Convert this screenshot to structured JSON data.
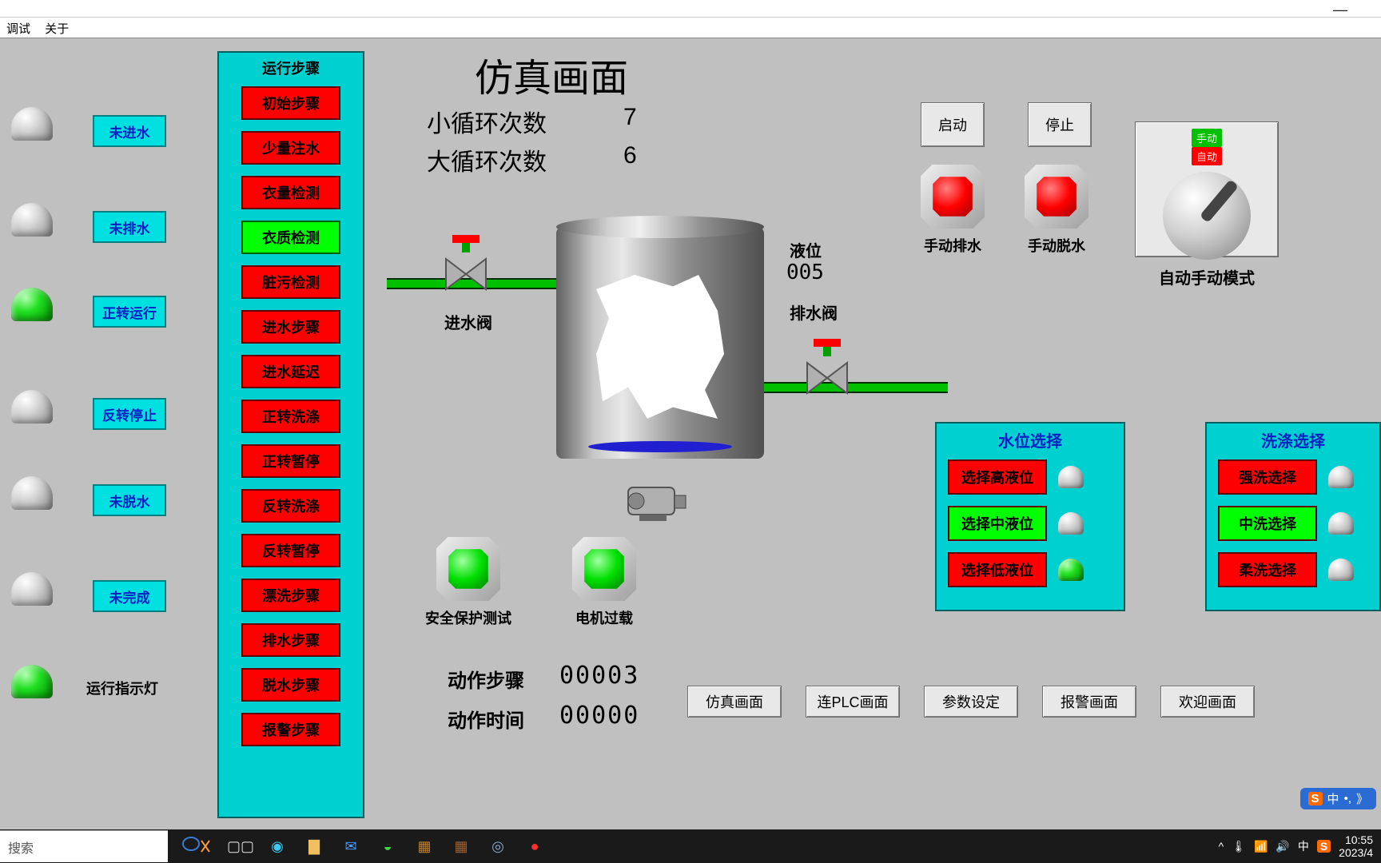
{
  "window": {
    "minimize": "—",
    "close": "✕"
  },
  "menubar": {
    "debug": "调试",
    "about": "关于"
  },
  "title": "仿真画面",
  "counters": {
    "small_label": "小循环次数",
    "small_value": "7",
    "big_label": "大循环次数",
    "big_value": "6"
  },
  "status_col": [
    {
      "label": "未进水",
      "on": false
    },
    {
      "label": "未排水",
      "on": false
    },
    {
      "label": "正转运行",
      "on": true
    },
    {
      "label": "反转停止",
      "on": false
    },
    {
      "label": "未脱水",
      "on": false
    },
    {
      "label": "未完成",
      "on": false
    }
  ],
  "run_indicator": {
    "label": "运行指示灯",
    "on": true
  },
  "steps_panel": {
    "title": "运行步骤",
    "items": [
      {
        "label": "初始步骤",
        "green": false
      },
      {
        "label": "少量注水",
        "green": false
      },
      {
        "label": "衣量检测",
        "green": false
      },
      {
        "label": "衣质检测",
        "green": true
      },
      {
        "label": "脏污检测",
        "green": false
      },
      {
        "label": "进水步骤",
        "green": false
      },
      {
        "label": "进水延迟",
        "green": false
      },
      {
        "label": "正转洗涤",
        "green": false
      },
      {
        "label": "正转暂停",
        "green": false
      },
      {
        "label": "反转洗涤",
        "green": false
      },
      {
        "label": "反转暂停",
        "green": false
      },
      {
        "label": "漂洗步骤",
        "green": false
      },
      {
        "label": "排水步骤",
        "green": false
      },
      {
        "label": "脱水步骤",
        "green": false
      },
      {
        "label": "报警步骤",
        "green": false
      }
    ]
  },
  "tank_labels": {
    "inlet_valve": "进水阀",
    "level_label": "液位",
    "level_value": "005",
    "outlet_valve": "排水阀"
  },
  "safety_buttons": {
    "safety_test": "安全保护测试",
    "motor_overload": "电机过载"
  },
  "action": {
    "step_label": "动作步骤",
    "step_value": "00003",
    "time_label": "动作时间",
    "time_value": "00000"
  },
  "top_buttons": {
    "start": "启动",
    "stop": "停止"
  },
  "manual_buttons": {
    "drain": "手动排水",
    "spin": "手动脱水"
  },
  "mode_panel": {
    "manual_tag": "手动",
    "auto_tag": "自动",
    "label": "自动手动模式"
  },
  "level_panel": {
    "title": "水位选择",
    "items": [
      {
        "label": "选择高液位",
        "green": false,
        "lamp_on": false
      },
      {
        "label": "选择中液位",
        "green": true,
        "lamp_on": false
      },
      {
        "label": "选择低液位",
        "green": false,
        "lamp_on": true
      }
    ]
  },
  "wash_panel": {
    "title": "洗涤选择",
    "items": [
      {
        "label": "强洗选择",
        "green": false,
        "lamp_on": false
      },
      {
        "label": "中洗选择",
        "green": true,
        "lamp_on": false
      },
      {
        "label": "柔洗选择",
        "green": false,
        "lamp_on": false
      }
    ]
  },
  "nav": [
    "仿真画面",
    "连PLC画面",
    "参数设定",
    "报警画面",
    "欢迎画面"
  ],
  "taskbar": {
    "search_placeholder": "搜索",
    "time": "10:55",
    "date": "2023/4",
    "ime": "中"
  },
  "colors": {
    "panel_cyan": "#00d0d0",
    "red": "#ff0000",
    "green": "#00ff00",
    "blue_text": "#0020c0",
    "canvas_bg": "#c0c0c0"
  }
}
